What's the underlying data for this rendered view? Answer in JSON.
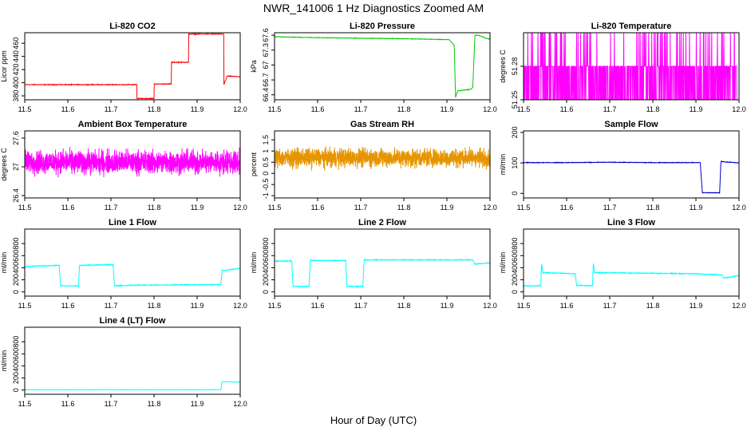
{
  "figure": {
    "title": "NWR_141006  1 Hz Diagnostics Zoomed AM",
    "xlabel": "Hour of Day (UTC)"
  },
  "chart_data": [
    {
      "type": "line",
      "title": "Li-820 CO2",
      "ylabel": "Licor ppm",
      "xlim": [
        11.5,
        12.0
      ],
      "ylim": [
        374,
        476
      ],
      "xticks": [
        11.5,
        11.6,
        11.7,
        11.8,
        11.9,
        12.0
      ],
      "yticks": [
        380,
        400,
        420,
        440,
        460
      ],
      "grid": false,
      "color": "#ff0000",
      "noise": 0.8,
      "series": [
        {
          "x": [
            11.5,
            11.76,
            11.76,
            11.8,
            11.8,
            11.84,
            11.84,
            11.88,
            11.88,
            11.962,
            11.962,
            11.97,
            12.0
          ],
          "values": [
            397,
            397,
            376,
            376,
            398,
            398,
            431,
            431,
            474,
            474,
            397,
            410,
            409
          ]
        }
      ]
    },
    {
      "type": "line",
      "title": "Li-820 Pressure",
      "ylabel": "kPa",
      "xlim": [
        11.5,
        12.0
      ],
      "ylim": [
        66.3,
        67.65
      ],
      "xticks": [
        11.5,
        11.6,
        11.7,
        11.8,
        11.9,
        12.0
      ],
      "yticks": [
        66.4,
        66.7,
        67.0,
        67.3,
        67.6
      ],
      "grid": false,
      "color": "#00cc00",
      "noise": 0.008,
      "series": [
        {
          "x": [
            11.5,
            11.6,
            11.7,
            11.8,
            11.905,
            11.917,
            11.92,
            11.925,
            11.955,
            11.96,
            11.965,
            11.97,
            11.98,
            11.99,
            12.0
          ],
          "values": [
            67.57,
            67.55,
            67.54,
            67.53,
            67.51,
            67.4,
            66.35,
            66.48,
            66.51,
            66.55,
            67.6,
            67.6,
            67.58,
            67.54,
            67.52
          ]
        }
      ]
    },
    {
      "type": "line",
      "title": "Li-820 Temperature",
      "ylabel": "degrees C",
      "xlim": [
        11.5,
        12.0
      ],
      "ylim": [
        51.25,
        51.31
      ],
      "xticks": [
        11.5,
        11.6,
        11.7,
        11.8,
        11.9,
        12.0
      ],
      "yticks": [
        51.25,
        51.28
      ],
      "grid": false,
      "color": "#ff00ff",
      "noise": 0,
      "x_end": 11.995,
      "values_quantized": [
        51.25,
        51.28,
        51.31
      ]
    },
    {
      "type": "line",
      "title": "Ambient Box Temperature",
      "ylabel": "degrees C",
      "xlim": [
        11.5,
        12.0
      ],
      "ylim": [
        26.35,
        27.75
      ],
      "xticks": [
        11.5,
        11.6,
        11.7,
        11.8,
        11.9,
        12.0
      ],
      "yticks": [
        26.4,
        27.0,
        27.6
      ],
      "grid": false,
      "color": "#ff00ff",
      "noise": 0.22,
      "mean": 27.1
    },
    {
      "type": "line",
      "title": "Gas Stream RH",
      "ylabel": "percent",
      "xlim": [
        11.5,
        12.0
      ],
      "ylim": [
        -1.1,
        1.9
      ],
      "xticks": [
        11.5,
        11.6,
        11.7,
        11.8,
        11.9,
        12.0
      ],
      "yticks": [
        -1.0,
        -0.5,
        0.0,
        0.5,
        1.0,
        1.5
      ],
      "grid": false,
      "color": "#e69500",
      "noise": 0.38,
      "mean": 0.7
    },
    {
      "type": "line",
      "title": "Sample Flow",
      "ylabel": "ml/min",
      "xlim": [
        11.5,
        12.0
      ],
      "ylim": [
        -15,
        205
      ],
      "xticks": [
        11.5,
        11.6,
        11.7,
        11.8,
        11.9,
        12.0
      ],
      "yticks": [
        0,
        100,
        200
      ],
      "grid": false,
      "color": "#0000cc",
      "noise": 1.5,
      "series": [
        {
          "x": [
            11.5,
            11.6,
            11.7,
            11.8,
            11.91,
            11.915,
            11.955,
            11.958,
            11.97,
            12.0
          ],
          "values": [
            101,
            101,
            102,
            101,
            101,
            2,
            2,
            105,
            103,
            100
          ]
        }
      ]
    },
    {
      "type": "line",
      "title": "Line 1 Flow",
      "ylabel": "ml/min",
      "xlim": [
        11.5,
        12.0
      ],
      "ylim": [
        -70,
        1040
      ],
      "xticks": [
        11.5,
        11.6,
        11.7,
        11.8,
        11.9,
        12.0
      ],
      "yticks": [
        0,
        200,
        400,
        600,
        800
      ],
      "grid": false,
      "color": "#00ffff",
      "noise": 10,
      "series": [
        {
          "x": [
            11.5,
            11.58,
            11.583,
            11.625,
            11.627,
            11.705,
            11.708,
            11.75,
            11.9,
            11.955,
            11.958,
            12.0
          ],
          "values": [
            420,
            440,
            100,
            100,
            440,
            450,
            100,
            110,
            120,
            120,
            350,
            390
          ]
        }
      ]
    },
    {
      "type": "line",
      "title": "Line 2 Flow",
      "ylabel": "ml/min",
      "xlim": [
        11.5,
        12.0
      ],
      "ylim": [
        -70,
        1040
      ],
      "xticks": [
        11.5,
        11.6,
        11.7,
        11.8,
        11.9,
        12.0
      ],
      "yticks": [
        0,
        200,
        400,
        600,
        800
      ],
      "grid": false,
      "color": "#00ffff",
      "noise": 10,
      "series": [
        {
          "x": [
            11.5,
            11.54,
            11.543,
            11.58,
            11.583,
            11.665,
            11.668,
            11.705,
            11.708,
            11.96,
            11.965,
            12.0
          ],
          "values": [
            510,
            510,
            90,
            90,
            520,
            520,
            90,
            90,
            530,
            530,
            460,
            480
          ]
        }
      ]
    },
    {
      "type": "line",
      "title": "Line 3 Flow",
      "ylabel": "ml/min",
      "xlim": [
        11.5,
        12.0
      ],
      "ylim": [
        -70,
        1040
      ],
      "xticks": [
        11.5,
        11.6,
        11.7,
        11.8,
        11.9,
        12.0
      ],
      "yticks": [
        0,
        200,
        400,
        600,
        800
      ],
      "grid": false,
      "color": "#00ffff",
      "noise": 10,
      "series": [
        {
          "x": [
            11.5,
            11.54,
            11.542,
            11.545,
            11.62,
            11.623,
            11.66,
            11.662,
            11.665,
            11.9,
            11.96,
            11.965,
            12.0
          ],
          "values": [
            100,
            100,
            480,
            320,
            300,
            110,
            100,
            480,
            320,
            300,
            280,
            230,
            270
          ]
        }
      ]
    },
    {
      "type": "line",
      "title": "Line 4 (LT) Flow",
      "ylabel": "ml/min",
      "xlim": [
        11.5,
        12.0
      ],
      "ylim": [
        -70,
        1040
      ],
      "xticks": [
        11.5,
        11.6,
        11.7,
        11.8,
        11.9,
        12.0
      ],
      "yticks": [
        0,
        200,
        400,
        600,
        800
      ],
      "grid": false,
      "color": "#00ffff",
      "noise": 2,
      "series": [
        {
          "x": [
            11.5,
            11.955,
            11.958,
            12.0
          ],
          "values": [
            5,
            5,
            140,
            130
          ]
        }
      ]
    }
  ]
}
